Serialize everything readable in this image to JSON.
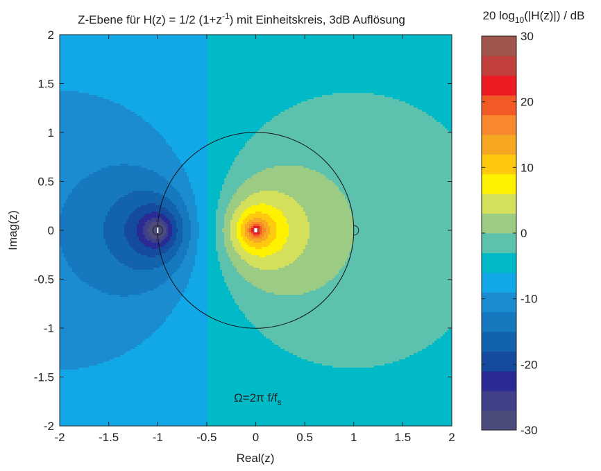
{
  "chart_data": {
    "type": "heatmap",
    "title_main": "Z-Ebene für H(z) = 1/2 (1+z",
    "title_sup": "-1",
    "title_rest": ") mit Einheitskreis, 3dB Auflösung",
    "xlabel": "Real(z)",
    "ylabel": "Imag(z)",
    "xlim": [
      -2,
      2
    ],
    "ylim": [
      -2,
      2
    ],
    "xticks": [
      -2,
      -1.5,
      -1,
      -0.5,
      0,
      0.5,
      1,
      1.5,
      2
    ],
    "yticks": [
      2,
      1.5,
      1,
      0.5,
      0,
      -0.5,
      -1,
      -1.5,
      -2
    ],
    "xtick_labels": [
      "-2",
      "-1.5",
      "-1",
      "-0.5",
      "0",
      "0.5",
      "1",
      "1.5",
      "2"
    ],
    "ytick_labels": [
      "2",
      "1.5",
      "1",
      "0.5",
      "0",
      "-0.5",
      "-1",
      "-1.5",
      "-2"
    ],
    "zero": {
      "re": -1,
      "im": 0
    },
    "pole": {
      "re": 0,
      "im": 0
    },
    "unit_circle": {
      "center": [
        0,
        0
      ],
      "radius": 1
    },
    "marker_at_z1": [
      1,
      0
    ],
    "contour_step_db": 3,
    "annotation": {
      "text": "Ω=2π f/f",
      "sub": "s",
      "x": 0.02,
      "y": -1.75
    },
    "colorbar": {
      "label_pre": "20 log",
      "label_sub": "10",
      "label_post": "(|H(z)|) / dB",
      "min": -30,
      "max": 30,
      "tick_values": [
        30,
        20,
        10,
        0,
        -10,
        -20,
        -30
      ],
      "tick_labels": [
        "30",
        "20",
        "10",
        "0",
        "-10",
        "-20",
        "-30"
      ],
      "band_colors": [
        "#4b4b7c",
        "#3f3f8a",
        "#2a2a95",
        "#144b9e",
        "#1363ac",
        "#1678bf",
        "#1a8ccf",
        "#12a8e8",
        "#00bac8",
        "#5cc2ae",
        "#9ccc84",
        "#d4df5c",
        "#fff200",
        "#ffc90e",
        "#f7a823",
        "#f7882d",
        "#f15a24",
        "#ed1c24",
        "#c1403c",
        "#a0554c"
      ]
    }
  }
}
